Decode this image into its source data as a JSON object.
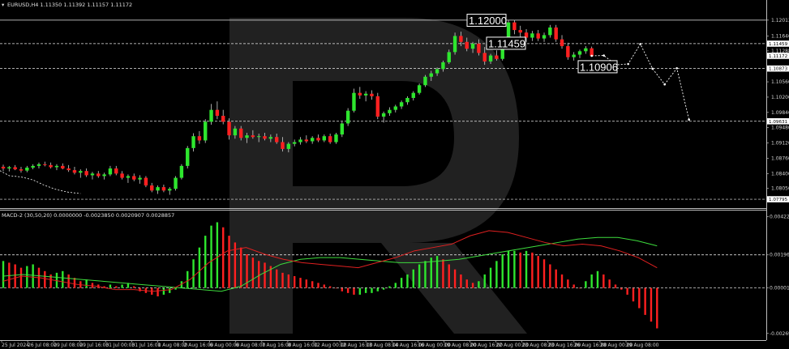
{
  "window": {
    "symbol_header": "EURUSD,H4  1.11350 1.11392 1.11157 1.11172",
    "macd_header": "MACD-2 (30,50,20) 0.0000000 -0.0023850 0.0020907 0.0028857"
  },
  "colors": {
    "background": "#000000",
    "bull": "#2ee62e",
    "bear": "#ff2020",
    "wick": "#cfcfcf",
    "level_line": "#ffffff",
    "projection": "#ffffff",
    "macd_signal_green": "#3ddc3d",
    "macd_signal_red": "#e02020",
    "watermark": "#5a5a5a"
  },
  "icons": {
    "watermark": "broker-logo-watermark"
  },
  "chart_data": [
    {
      "type": "candlestick",
      "symbol": "EURUSD",
      "timeframe": "H4",
      "ylim": [
        1.0772,
        1.1222
      ],
      "y_ticks": [
        "1.12013",
        "1.11640",
        "1.11288",
        "1.10560",
        "1.10200",
        "1.09840",
        "1.09480",
        "1.09120",
        "1.08760",
        "1.08400",
        "1.08050"
      ],
      "x_tick_labels": [
        "25 Jul 2024",
        "26 Jul 08:00",
        "29 Jul 08:00",
        "29 Jul 16:00",
        "31 Jul 00:00",
        "31 Jul 16:00",
        "1 Aug 08:00",
        "2 Aug 16:00",
        "6 Aug 00:00",
        "6 Aug 08:00",
        "7 Aug 16:00",
        "8 Aug 16:00",
        "12 Aug 00:00",
        "12 Aug 16:00",
        "13 Aug 08:00",
        "14 Aug 16:00",
        "16 Aug 00:00",
        "19 Aug 08:00",
        "20 Aug 16:00",
        "22 Aug 00:00",
        "23 Aug 08:00",
        "23 Aug 16:00",
        "26 Aug 16:00",
        "28 Aug 00:00",
        "29 Aug 08:00"
      ],
      "price_labels": [
        {
          "text": "1.11459",
          "value": 1.11459,
          "style": "white"
        },
        {
          "text": "1.11172",
          "value": 1.11172,
          "style": "white"
        },
        {
          "text": "1.10873",
          "value": 1.10873,
          "style": "white"
        },
        {
          "text": "1.09631",
          "value": 1.09631,
          "style": "white"
        },
        {
          "text": "1.07795",
          "value": 1.07795,
          "style": "white"
        }
      ],
      "levels": [
        {
          "value": 1.12013,
          "style": "solid"
        },
        {
          "value": 1.11459,
          "style": "dashed"
        },
        {
          "value": 1.10873,
          "style": "dashed"
        },
        {
          "value": 1.09631,
          "style": "dashed"
        },
        {
          "value": 1.07795,
          "style": "dashed"
        }
      ],
      "annotations": [
        {
          "text": "1.12000",
          "value": 1.12
        },
        {
          "text": "1.11459",
          "value": 1.11459
        },
        {
          "text": "1.10906",
          "value": 1.10906
        }
      ],
      "candles": [
        [
          1.0856,
          1.0861,
          1.0846,
          1.0852
        ],
        [
          1.0852,
          1.0858,
          1.0845,
          1.0855
        ],
        [
          1.0855,
          1.086,
          1.0848,
          1.085
        ],
        [
          1.085,
          1.0856,
          1.0842,
          1.0847
        ],
        [
          1.0847,
          1.0858,
          1.0843,
          1.0854
        ],
        [
          1.0854,
          1.0862,
          1.085,
          1.0858
        ],
        [
          1.0858,
          1.0866,
          1.0852,
          1.0862
        ],
        [
          1.0862,
          1.0868,
          1.0857,
          1.086
        ],
        [
          1.086,
          1.0866,
          1.0852,
          1.0855
        ],
        [
          1.0855,
          1.0862,
          1.0848,
          1.0858
        ],
        [
          1.0858,
          1.0864,
          1.085,
          1.0852
        ],
        [
          1.0852,
          1.086,
          1.0844,
          1.0848
        ],
        [
          1.0848,
          1.0856,
          1.0838,
          1.0842
        ],
        [
          1.0842,
          1.085,
          1.083,
          1.0846
        ],
        [
          1.0846,
          1.0852,
          1.0832,
          1.0836
        ],
        [
          1.0836,
          1.0844,
          1.0826,
          1.084
        ],
        [
          1.084,
          1.0846,
          1.083,
          1.0834
        ],
        [
          1.0834,
          1.0842,
          1.0826,
          1.0838
        ],
        [
          1.0838,
          1.0858,
          1.0834,
          1.0852
        ],
        [
          1.0852,
          1.0858,
          1.0836,
          1.084
        ],
        [
          1.084,
          1.0846,
          1.0826,
          1.083
        ],
        [
          1.083,
          1.0838,
          1.0818,
          1.0834
        ],
        [
          1.0834,
          1.084,
          1.0822,
          1.0826
        ],
        [
          1.0826,
          1.0836,
          1.0816,
          1.083
        ],
        [
          1.083,
          1.0834,
          1.0808,
          1.0812
        ],
        [
          1.0812,
          1.0818,
          1.0796,
          1.08
        ],
        [
          1.08,
          1.0812,
          1.0792,
          1.0808
        ],
        [
          1.0808,
          1.0814,
          1.0796,
          1.08
        ],
        [
          1.08,
          1.0808,
          1.079,
          1.0804
        ],
        [
          1.0804,
          1.0834,
          1.08,
          1.083
        ],
        [
          1.083,
          1.0862,
          1.0826,
          1.0858
        ],
        [
          1.0858,
          1.0905,
          1.0852,
          1.09
        ],
        [
          1.09,
          1.0935,
          1.0892,
          1.0928
        ],
        [
          1.0928,
          1.094,
          1.091,
          1.0918
        ],
        [
          1.0918,
          1.0968,
          1.0912,
          1.0962
        ],
        [
          1.0962,
          1.1004,
          1.0955,
          1.099
        ],
        [
          1.099,
          1.101,
          1.0968,
          1.0976
        ],
        [
          1.0976,
          1.099,
          1.0956,
          1.0962
        ],
        [
          1.0962,
          1.097,
          1.092,
          1.093
        ],
        [
          1.093,
          1.0952,
          1.0922,
          1.0946
        ],
        [
          1.0946,
          1.0952,
          1.0918,
          1.0924
        ],
        [
          1.0924,
          1.0936,
          1.0912,
          1.093
        ],
        [
          1.093,
          1.0942,
          1.0922,
          1.0926
        ],
        [
          1.0926,
          1.0934,
          1.0914,
          1.0928
        ],
        [
          1.0928,
          1.0936,
          1.0918,
          1.0922
        ],
        [
          1.0922,
          1.0932,
          1.0914,
          1.0926
        ],
        [
          1.0926,
          1.0934,
          1.091,
          1.0914
        ],
        [
          1.0914,
          1.0926,
          1.0892,
          1.0898
        ],
        [
          1.0898,
          1.0914,
          1.089,
          1.091
        ],
        [
          1.091,
          1.092,
          1.0904,
          1.0914
        ],
        [
          1.0914,
          1.0926,
          1.0908,
          1.092
        ],
        [
          1.092,
          1.093,
          1.0912,
          1.0916
        ],
        [
          1.0916,
          1.0928,
          1.091,
          1.0924
        ],
        [
          1.0924,
          1.0932,
          1.0914,
          1.0918
        ],
        [
          1.0918,
          1.0932,
          1.0914,
          1.0928
        ],
        [
          1.0928,
          1.0934,
          1.091,
          1.0914
        ],
        [
          1.0914,
          1.0936,
          1.091,
          1.0932
        ],
        [
          1.0932,
          1.0962,
          1.0926,
          1.0958
        ],
        [
          1.0958,
          1.0994,
          1.0952,
          1.0988
        ],
        [
          1.0988,
          1.104,
          1.0984,
          1.103
        ],
        [
          1.103,
          1.1044,
          1.1016,
          1.1024
        ],
        [
          1.1024,
          1.1034,
          1.101,
          1.1028
        ],
        [
          1.1028,
          1.1036,
          1.1014,
          1.1022
        ],
        [
          1.1022,
          1.103,
          1.0968,
          1.0974
        ],
        [
          1.0974,
          1.0986,
          1.096,
          1.0982
        ],
        [
          1.0982,
          1.0996,
          1.0976,
          1.099
        ],
        [
          1.099,
          1.1002,
          1.0984,
          1.0998
        ],
        [
          1.0998,
          1.1012,
          1.0992,
          1.1008
        ],
        [
          1.1008,
          1.1022,
          1.1002,
          1.1018
        ],
        [
          1.1018,
          1.1034,
          1.1012,
          1.103
        ],
        [
          1.103,
          1.1052,
          1.1026,
          1.1048
        ],
        [
          1.1048,
          1.1072,
          1.1044,
          1.1068
        ],
        [
          1.1068,
          1.1082,
          1.1058,
          1.1076
        ],
        [
          1.1076,
          1.109,
          1.107,
          1.1086
        ],
        [
          1.1086,
          1.1106,
          1.108,
          1.1102
        ],
        [
          1.1102,
          1.1132,
          1.1098,
          1.1126
        ],
        [
          1.1126,
          1.1172,
          1.112,
          1.1164
        ],
        [
          1.1164,
          1.1174,
          1.114,
          1.115
        ],
        [
          1.115,
          1.116,
          1.1128,
          1.1134
        ],
        [
          1.1134,
          1.115,
          1.1124,
          1.1146
        ],
        [
          1.1146,
          1.1156,
          1.1118,
          1.1124
        ],
        [
          1.1124,
          1.1138,
          1.1096,
          1.1104
        ],
        [
          1.1104,
          1.1122,
          1.1098,
          1.1118
        ],
        [
          1.1118,
          1.113,
          1.1106,
          1.111
        ],
        [
          1.111,
          1.1152,
          1.1106,
          1.1146
        ],
        [
          1.1146,
          1.1202,
          1.114,
          1.1196
        ],
        [
          1.1196,
          1.1202,
          1.1168,
          1.1178
        ],
        [
          1.1178,
          1.1188,
          1.116,
          1.1172
        ],
        [
          1.1172,
          1.118,
          1.115,
          1.116
        ],
        [
          1.116,
          1.1176,
          1.1152,
          1.117
        ],
        [
          1.117,
          1.1178,
          1.1152,
          1.1158
        ],
        [
          1.1158,
          1.1172,
          1.115,
          1.1166
        ],
        [
          1.1166,
          1.119,
          1.116,
          1.1184
        ],
        [
          1.1184,
          1.119,
          1.115,
          1.1156
        ],
        [
          1.1156,
          1.1166,
          1.1134,
          1.114
        ],
        [
          1.114,
          1.1148,
          1.1108,
          1.1114
        ],
        [
          1.1114,
          1.1126,
          1.1106,
          1.112
        ],
        [
          1.112,
          1.1132,
          1.1112,
          1.1128
        ],
        [
          1.1128,
          1.114,
          1.1122,
          1.1135
        ],
        [
          1.1135,
          1.1139,
          1.1116,
          1.1117
        ]
      ],
      "projection_path": [
        [
          1.11172,
          0
        ],
        [
          1.1118,
          2
        ],
        [
          1.1096,
          4
        ],
        [
          1.1098,
          6
        ],
        [
          1.1145,
          8
        ],
        [
          1.1087,
          10
        ],
        [
          1.105,
          12
        ],
        [
          1.1088,
          14
        ],
        [
          1.0967,
          16
        ]
      ],
      "triangle_lines": [
        [
          [
            -2,
            1.0858
          ],
          [
            1,
            1.0835
          ],
          [
            3,
            1.0832
          ],
          [
            5,
            1.0825
          ],
          [
            7,
            1.0812
          ],
          [
            9,
            1.0802
          ],
          [
            11,
            1.0796
          ],
          [
            13,
            1.0793
          ]
        ]
      ]
    },
    {
      "type": "macd",
      "title": "MACD-2 (30,50,20)",
      "ylim": [
        -0.003,
        0.0045
      ],
      "y_ticks": [
        "0.0042264",
        "0.0019640",
        "0.0000146",
        "-0.0026999"
      ],
      "histogram": [
        0.0016,
        0.0015,
        0.0014,
        0.0012,
        0.0013,
        0.0014,
        0.0012,
        0.001,
        0.0008,
        0.0009,
        0.001,
        0.0008,
        0.0006,
        0.0004,
        0.0005,
        0.0003,
        0.0002,
        0.0001,
        0.0002,
        0.0001,
        0.0002,
        0.0003,
        0.0001,
        -0.0002,
        -0.0003,
        -0.0004,
        -0.0005,
        -0.0004,
        -0.0003,
        -0.0001,
        0.0004,
        0.001,
        0.0017,
        0.0024,
        0.0031,
        0.0037,
        0.0039,
        0.0036,
        0.0031,
        0.0027,
        0.0024,
        0.002,
        0.0018,
        0.0016,
        0.0015,
        0.0013,
        0.0011,
        0.0009,
        0.0008,
        0.0007,
        0.0006,
        0.0005,
        0.0004,
        0.0003,
        0.0002,
        0.0001,
        0.0,
        -0.0002,
        -0.0003,
        -0.0004,
        -0.0004,
        -0.0003,
        -0.0003,
        -0.0002,
        -0.0001,
        0.0001,
        0.0003,
        0.0006,
        0.0008,
        0.0011,
        0.0014,
        0.0016,
        0.0018,
        0.0019,
        0.0017,
        0.0014,
        0.0011,
        0.0008,
        0.0005,
        0.0003,
        0.0004,
        0.0008,
        0.0012,
        0.0016,
        0.002,
        0.0022,
        0.0022,
        0.0021,
        0.0022,
        0.0021,
        0.0019,
        0.0017,
        0.0014,
        0.0011,
        0.0008,
        0.0005,
        0.0002,
        0.0,
        0.0004,
        0.0008,
        0.001,
        0.0008,
        0.0005,
        0.0002,
        -0.0001,
        -0.0004,
        -0.0008,
        -0.0012,
        -0.0016,
        -0.002,
        -0.0024
      ],
      "hist_colors": "rise-green/fall-red",
      "signal_green": [
        0.0007,
        0.0008,
        0.0007,
        0.0006,
        0.0005,
        0.0004,
        0.0003,
        0.0002,
        0.0001,
        0.0,
        -0.0001,
        -0.0002,
        0.0001,
        0.0008,
        0.0014,
        0.0017,
        0.0018,
        0.0018,
        0.0017,
        0.0016,
        0.0015,
        0.0015,
        0.0016,
        0.0017,
        0.0019,
        0.0021,
        0.0023,
        0.0025,
        0.0027,
        0.0029,
        0.003,
        0.003,
        0.0028,
        0.0025
      ],
      "signal_red": [
        0.0004,
        0.0007,
        0.0006,
        0.0004,
        0.0002,
        0.0001,
        -0.0001,
        -0.0001,
        -0.0002,
        -0.0001,
        0.0005,
        0.0015,
        0.0022,
        0.0024,
        0.002,
        0.0017,
        0.0015,
        0.0014,
        0.0013,
        0.0012,
        0.0015,
        0.0018,
        0.0022,
        0.0024,
        0.0026,
        0.0031,
        0.0034,
        0.0033,
        0.003,
        0.0027,
        0.0025,
        0.0026,
        0.0025,
        0.0022,
        0.0018,
        0.0012
      ]
    }
  ]
}
